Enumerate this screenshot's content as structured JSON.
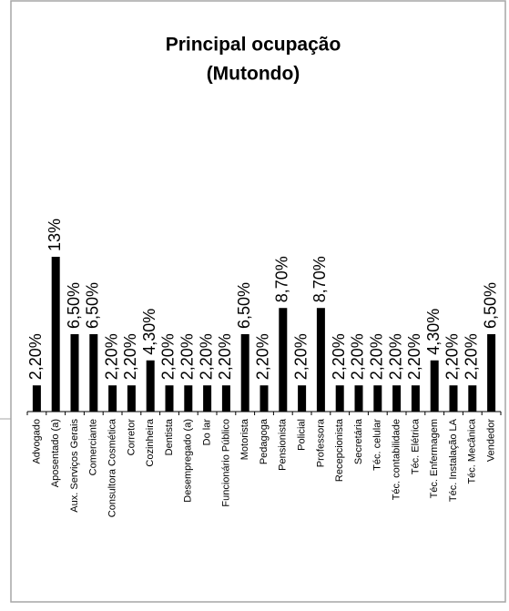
{
  "chart_data": {
    "type": "bar",
    "title": [
      "Principal ocupação",
      "(Mutondo)"
    ],
    "categories": [
      "Advogado",
      "Aposentado (a)",
      "Aux. Serviços Gerais",
      "Comerciante",
      "Consultora Cosmética",
      "Corretor",
      "Cozinheira",
      "Dentista",
      "Desempregado (a)",
      "Do lar",
      "Funcionário Público",
      "Motorista",
      "Pedagoga",
      "Pensionista",
      "Policial",
      "Professora",
      "Recepcionista",
      "Secretária",
      "Téc. celular",
      "Téc. contabilidade",
      "Téc. Elétrica",
      "Téc. Enfermagem",
      "Téc. Instalação LA",
      "Téc. Mecânica",
      "Vendedor"
    ],
    "values": [
      2.2,
      13,
      6.5,
      6.5,
      2.2,
      2.2,
      4.3,
      2.2,
      2.2,
      2.2,
      2.2,
      6.5,
      2.2,
      8.7,
      2.2,
      8.7,
      2.2,
      2.2,
      2.2,
      2.2,
      2.2,
      4.3,
      2.2,
      2.2,
      6.5
    ],
    "value_labels": [
      "2,20%",
      "13%",
      "6,50%",
      "6,50%",
      "2,20%",
      "2,20%",
      "4,30%",
      "2,20%",
      "2,20%",
      "2,20%",
      "2,20%",
      "6,50%",
      "2,20%",
      "8,70%",
      "2,20%",
      "8,70%",
      "2,20%",
      "2,20%",
      "2,20%",
      "2,20%",
      "2,20%",
      "4,30%",
      "2,20%",
      "2,20%",
      "6,50%"
    ],
    "color": "#000000"
  }
}
